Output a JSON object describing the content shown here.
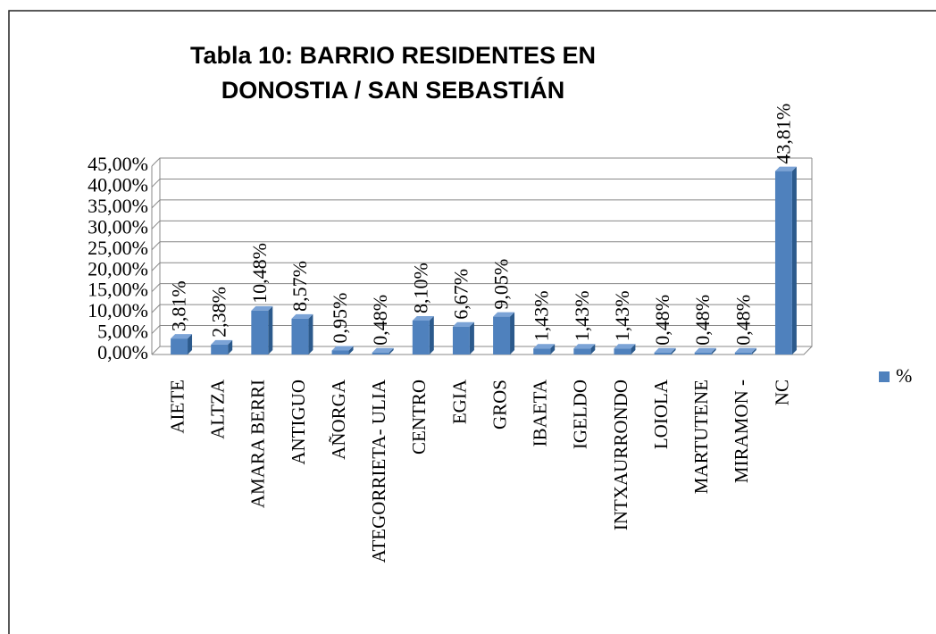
{
  "chart_data": {
    "type": "bar3d",
    "title": "Tabla 10: BARRIO RESIDENTES EN",
    "subtitle": "DONOSTIA / SAN SEBASTIÁN",
    "categories": [
      "AIETE",
      "ALTZA",
      "AMARA BERRI",
      "ANTIGUO",
      "AÑORGA",
      "ATEGORRIETA- ULIA",
      "CENTRO",
      "EGIA",
      "GROS",
      "IBAETA",
      "IGELDO",
      "INTXAURRONDO",
      "LOIOLA",
      "MARTUTENE",
      "MIRAMON -",
      "NC"
    ],
    "series": [
      {
        "name": "%",
        "color": "#4f81bd",
        "values": [
          3.81,
          2.38,
          10.48,
          8.57,
          0.95,
          0.48,
          8.1,
          6.67,
          9.05,
          1.43,
          1.43,
          1.43,
          0.48,
          0.48,
          0.48,
          43.81
        ],
        "value_labels": [
          "3,81%",
          "2,38%",
          "10,48%",
          "8,57%",
          "0,95%",
          "0,48%",
          "8,10%",
          "6,67%",
          "9,05%",
          "1,43%",
          "1,43%",
          "1,43%",
          "0,48%",
          "0,48%",
          "0,48%",
          "43,81%"
        ]
      }
    ],
    "ylim": [
      0,
      45
    ],
    "yticks": [
      {
        "value": 0,
        "label": "0,00%"
      },
      {
        "value": 5,
        "label": "5,00%"
      },
      {
        "value": 10,
        "label": "10,00%"
      },
      {
        "value": 15,
        "label": "15,00%"
      },
      {
        "value": 20,
        "label": "20,00%"
      },
      {
        "value": 25,
        "label": "25,00%"
      },
      {
        "value": 30,
        "label": "30,00%"
      },
      {
        "value": 35,
        "label": "35,00%"
      },
      {
        "value": 40,
        "label": "40,00%"
      },
      {
        "value": 45,
        "label": "45,00%"
      }
    ],
    "grid": true,
    "legend": "right"
  }
}
